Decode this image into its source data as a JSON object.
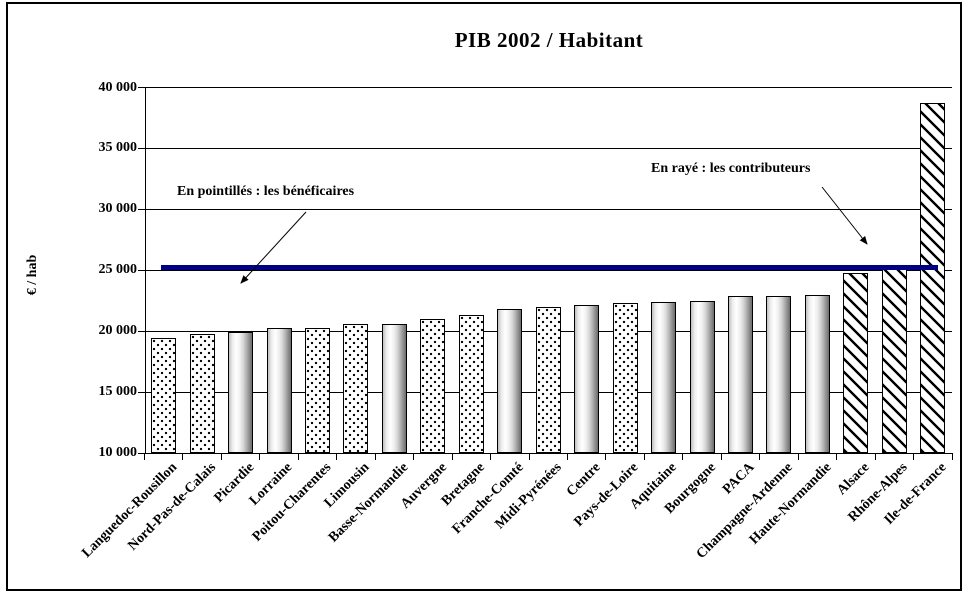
{
  "title": "PIB 2002 / Habitant",
  "annotations": {
    "beneficiaries": "En pointillés : les bénéficaires",
    "contributors": "En rayé : les contributeurs"
  },
  "colors": {
    "reference_line": "#000084",
    "ink": "#000000",
    "background": "#ffffff"
  },
  "chart_data": {
    "type": "bar",
    "title": "PIB 2002 / Habitant",
    "ylabel": "€ / hab",
    "xlabel": "",
    "ylim": [
      10000,
      40000
    ],
    "ytick_step": 5000,
    "ytick_labels": [
      "10 000",
      "15 000",
      "20 000",
      "25 000",
      "30 000",
      "35 000",
      "40 000"
    ],
    "grid": true,
    "legend_position": "none",
    "categories": [
      "Languedoc-Rousillon",
      "Nord-Pas-de-Calais",
      "Picardie",
      "Lorraine",
      "Poitou-Charentes",
      "Limousin",
      "Basse-Normandie",
      "Auvergne",
      "Bretagne",
      "Franche-Comté",
      "Midi-Pyrénées",
      "Centre",
      "Pays-de-Loire",
      "Aquitaine",
      "Bourgogne",
      "PACA",
      "Champagne-Ardenne",
      "Haute-Normandie",
      "Alsace",
      "Rhône-Alpes",
      "Ile-de-France"
    ],
    "values": [
      19400,
      19800,
      19950,
      20300,
      20250,
      20550,
      20600,
      21000,
      21350,
      21800,
      22000,
      22150,
      22300,
      22400,
      22450,
      22900,
      22900,
      23000,
      24800,
      25100,
      38700
    ],
    "patterns": [
      "dotted",
      "dotted",
      "gradient",
      "gradient",
      "dotted",
      "dotted",
      "gradient",
      "dotted",
      "dotted",
      "gradient",
      "dotted",
      "gradient",
      "dotted",
      "gradient",
      "gradient",
      "gradient",
      "gradient",
      "gradient",
      "striped",
      "striped",
      "striped"
    ],
    "pattern_meaning": {
      "dotted": "bénéficaires",
      "striped": "contributeurs"
    },
    "reference_line": {
      "value": 25200,
      "color": "#000084"
    }
  }
}
